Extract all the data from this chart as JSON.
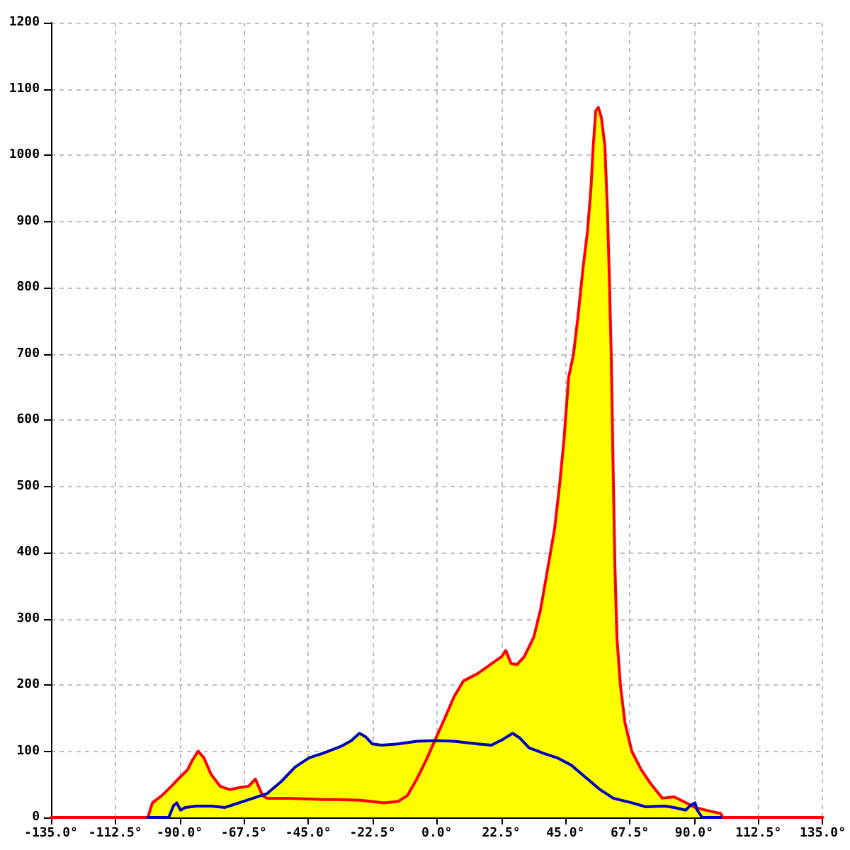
{
  "chart_data": {
    "type": "line",
    "grid": true,
    "xlim": [
      -135,
      135
    ],
    "xticks": [
      {
        "value": -135,
        "label": "-135.0°"
      },
      {
        "value": -112.5,
        "label": "-112.5°"
      },
      {
        "value": -90,
        "label": "-90.0°"
      },
      {
        "value": -67.5,
        "label": "-67.5°"
      },
      {
        "value": -45,
        "label": "-45.0°"
      },
      {
        "value": -22.5,
        "label": "-22.5°"
      },
      {
        "value": 0,
        "label": "0.0°"
      },
      {
        "value": 22.5,
        "label": "22.5°"
      },
      {
        "value": 45,
        "label": "45.0°"
      },
      {
        "value": 67.5,
        "label": "67.5°"
      },
      {
        "value": 90,
        "label": "90.0°"
      },
      {
        "value": 112.5,
        "label": "112.5°"
      },
      {
        "value": 135,
        "label": "135.0°"
      }
    ],
    "ylim": [
      0,
      1200
    ],
    "yticks": [
      0,
      100,
      200,
      300,
      400,
      500,
      600,
      700,
      800,
      900,
      1000,
      1100,
      1200
    ],
    "series": [
      {
        "type": "area",
        "color": "#ffff00",
        "x": [
          -101.1,
          -99.5,
          -96.2,
          -92.9,
          -90.5,
          -87.2,
          -85.6,
          -83.5,
          -81.5,
          -79.0,
          -75.8,
          -72.5,
          -69.2,
          -65.9,
          -63.5,
          -60.5,
          -59.4,
          -54.5,
          -49.6,
          -44.7,
          -39.8,
          -33.2,
          -29.9,
          -27.1,
          -25.0,
          -22.6,
          -19.3,
          -13.6,
          -7.0,
          -1.0,
          2.8,
          6.0,
          9.3,
          14.2,
          19.1,
          22.7,
          24.1,
          26.0,
          28.1,
          30.6,
          33.9,
          36.3,
          39.6,
          41.2,
          42.9,
          44.5,
          46.1,
          47.8,
          49.4,
          51.1,
          52.7,
          53.9,
          54.7,
          55.6,
          56.5,
          57.6,
          58.8,
          59.7,
          60.4,
          61.0,
          61.7,
          62.3,
          63.0,
          64.2,
          65.8,
          68.2,
          71.5,
          74.8,
          78.9,
          83.0,
          86.3,
          88.7,
          90.3,
          91.1,
          96.1,
          99.3,
          100.1
        ],
        "values": [
          0,
          22,
          33,
          47,
          58,
          72,
          86,
          100,
          90,
          65,
          47,
          42,
          45,
          47,
          58,
          32,
          36,
          54,
          76,
          90,
          97,
          108,
          116,
          127,
          122,
          111,
          109,
          111,
          115,
          116,
          150,
          182,
          206,
          217,
          232,
          243,
          252,
          232,
          231,
          243,
          272,
          314,
          396,
          436,
          500,
          571,
          664,
          699,
          757,
          828,
          885,
          949,
          1013,
          1067,
          1072,
          1056,
          1013,
          913,
          806,
          699,
          521,
          379,
          272,
          200,
          143,
          100,
          72,
          51,
          29,
          31,
          24,
          19,
          22,
          15,
          9,
          6,
          0
        ]
      },
      {
        "color": "#ff0000",
        "x": [
          -135,
          -101.1,
          -99.5,
          -96.2,
          -92.9,
          -90.5,
          -87.2,
          -85.6,
          -83.5,
          -81.5,
          -79.0,
          -75.8,
          -72.5,
          -69.2,
          -65.9,
          -63.5,
          -61.0,
          -59.4,
          -52.0,
          -46.3,
          -40.0,
          -34.9,
          -26.7,
          -18.5,
          -13.6,
          -10.3,
          -7.0,
          -3.8,
          -0.5,
          2.8,
          6.0,
          9.3,
          14.2,
          19.1,
          22.7,
          24.1,
          26.0,
          28.1,
          30.6,
          33.9,
          36.3,
          39.6,
          41.2,
          42.9,
          44.5,
          46.1,
          47.8,
          49.4,
          51.1,
          52.7,
          53.9,
          54.7,
          55.6,
          56.5,
          57.6,
          58.8,
          59.7,
          60.4,
          61.0,
          61.7,
          62.3,
          63.0,
          64.2,
          65.8,
          68.2,
          71.5,
          74.8,
          78.9,
          83.0,
          86.3,
          90.3,
          96.1,
          99.3,
          100.1,
          135
        ],
        "values": [
          0,
          0,
          22,
          33,
          47,
          58,
          72,
          86,
          100,
          90,
          65,
          47,
          42,
          45,
          47,
          58,
          33,
          29,
          29,
          28,
          27,
          27,
          26,
          22,
          24,
          33,
          58,
          86,
          118,
          150,
          182,
          206,
          217,
          232,
          243,
          252,
          232,
          231,
          243,
          272,
          314,
          396,
          436,
          500,
          571,
          664,
          699,
          757,
          828,
          885,
          949,
          1013,
          1067,
          1072,
          1056,
          1013,
          913,
          806,
          699,
          521,
          379,
          272,
          200,
          143,
          100,
          72,
          51,
          29,
          31,
          24,
          15,
          9,
          6,
          0,
          0
        ]
      },
      {
        "color": "#0000c0",
        "x": [
          -101.1,
          -93.8,
          -92.1,
          -91.0,
          -89.7,
          -88.0,
          -84.0,
          -79.0,
          -74.1,
          -69.2,
          -64.3,
          -59.4,
          -54.5,
          -49.6,
          -44.7,
          -39.8,
          -33.2,
          -29.9,
          -27.1,
          -25.0,
          -22.6,
          -19.3,
          -13.6,
          -7.0,
          -0.5,
          6.0,
          14.2,
          19.1,
          23.2,
          26.5,
          29.0,
          32.3,
          37.2,
          42.1,
          47.0,
          51.9,
          56.8,
          61.7,
          68.2,
          73.1,
          79.7,
          83.0,
          87.1,
          88.7,
          90.3,
          91.1,
          92.8,
          99.3
        ],
        "values": [
          0,
          0,
          18,
          22,
          11,
          15,
          17,
          17,
          15,
          22,
          29,
          36,
          54,
          76,
          90,
          97,
          108,
          116,
          127,
          122,
          111,
          109,
          111,
          115,
          116,
          115,
          111,
          109,
          118,
          127,
          120,
          105,
          97,
          90,
          79,
          61,
          43,
          29,
          22,
          16,
          17,
          15,
          11,
          18,
          22,
          11,
          0,
          0
        ]
      }
    ]
  }
}
